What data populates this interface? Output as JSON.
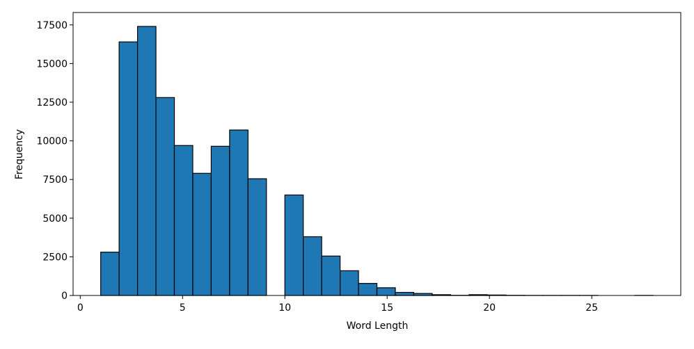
{
  "chart_data": {
    "type": "histogram",
    "xlabel": "Word Length",
    "ylabel": "Frequency",
    "bins": [
      1,
      1.9,
      2.8,
      3.7,
      4.6,
      5.5,
      6.4,
      7.3,
      8.2,
      9.1,
      10,
      10.9,
      11.8,
      12.7,
      13.6,
      14.5,
      15.4,
      16.3,
      17.2,
      18.1,
      19,
      19.9,
      20.8,
      21.7,
      22.6,
      23.5,
      24.4,
      25.3,
      26.2,
      27.1,
      28
    ],
    "values": [
      2800,
      16400,
      17400,
      12800,
      9700,
      7900,
      9650,
      10700,
      7550,
      0,
      6500,
      3800,
      2550,
      1600,
      780,
      500,
      200,
      130,
      50,
      10,
      50,
      30,
      10,
      5,
      5,
      5,
      5,
      0,
      0,
      5
    ],
    "color": "#1f77b4",
    "xlim": [
      -0.35,
      29.35
    ],
    "xticks": [
      0,
      5,
      10,
      15,
      20,
      25
    ],
    "ylim": [
      0,
      18300
    ],
    "yticks": [
      0,
      2500,
      5000,
      7500,
      10000,
      12500,
      15000,
      17500
    ]
  }
}
